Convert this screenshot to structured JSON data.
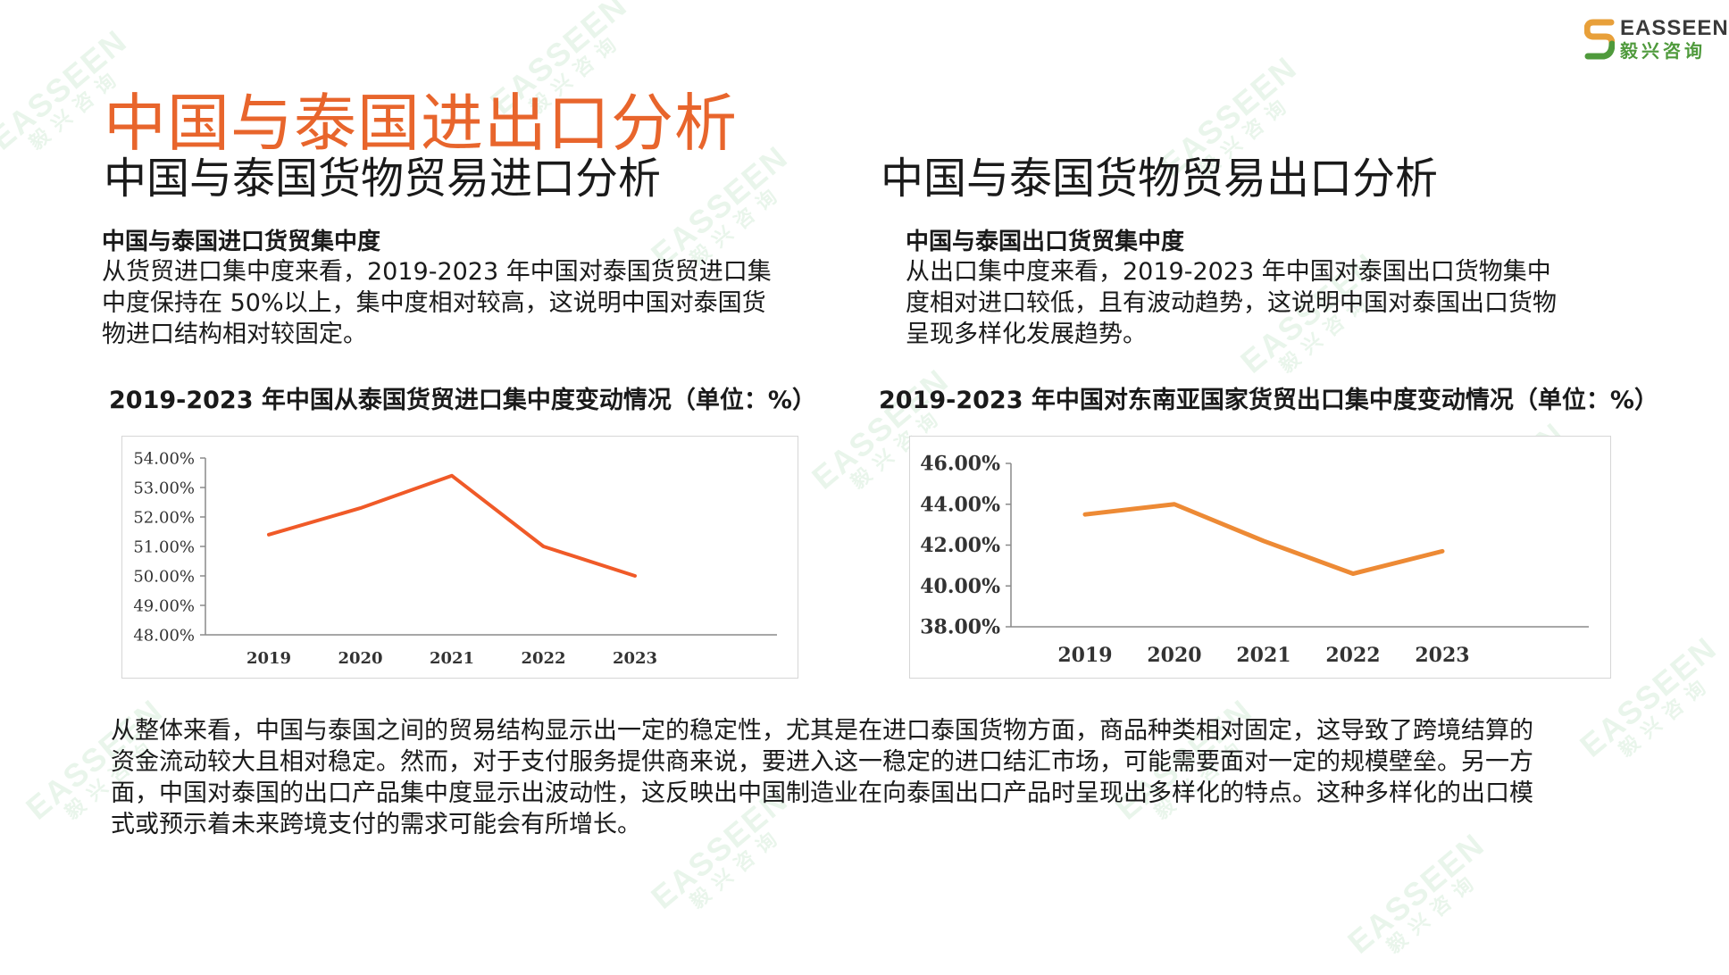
{
  "logo": {
    "en": "EASSEEN",
    "cn": "毅兴咨询"
  },
  "watermark": {
    "en": "EASSEEN",
    "cn": "毅兴咨询"
  },
  "main_title": "中国与泰国进出口分析",
  "import_section": {
    "title": "中国与泰国货物贸易进口分析",
    "heading": "中国与泰国进口货贸集中度",
    "lines": [
      "从货贸进口集中度来看，2019-2023  年中国对泰国货贸进口集",
      "中度保持在  50%以上，集中度相对较高，这说明中国对泰国货",
      "物进口结构相对较固定。"
    ],
    "chart_title": "2019-2023 年中国从泰国货贸进口集中度变动情况（单位：%）"
  },
  "export_section": {
    "title": "中国与泰国货物贸易出口分析",
    "heading": "中国与泰国出口货贸集中度",
    "lines": [
      "从出口集中度来看，2019-2023  年中国对泰国出口货物集中",
      "度相对进口较低，且有波动趋势，这说明中国对泰国出口货物",
      "呈现多样化发展趋势。"
    ],
    "chart_title": "2019-2023 年中国对东南亚国家货贸出口集中度变动情况（单位：%）"
  },
  "summary_lines": [
    "从整体来看，中国与泰国之间的贸易结构显示出一定的稳定性，尤其是在进口泰国货物方面，商品种类相对固定，这导致了跨境结算的",
    "资金流动较大且相对稳定。然而，对于支付服务提供商来说，要进入这一稳定的进口结汇市场，可能需要面对一定的规模壁垒。另一方",
    "面，中国对泰国的出口产品集中度显示出波动性，这反映出中国制造业在向泰国出口产品时呈现出多样化的特点。这种多样化的出口模",
    "式或预示着未来跨境支付的需求可能会有所增长。"
  ],
  "colors": {
    "title_orange": "#e8652c",
    "import_line": "#f05a28",
    "export_line": "#ed8a35",
    "logo_green": "#4f9a3c"
  },
  "chart_data": [
    {
      "type": "line",
      "categories": [
        "2019",
        "2020",
        "2021",
        "2022",
        "2023"
      ],
      "values": [
        51.4,
        52.3,
        53.4,
        51.0,
        50.0
      ],
      "yticks": [
        "54.00%",
        "53.00%",
        "52.00%",
        "51.00%",
        "50.00%",
        "49.00%",
        "48.00%"
      ],
      "ylim": [
        48,
        54
      ],
      "grid": false
    },
    {
      "type": "line",
      "categories": [
        "2019",
        "2020",
        "2021",
        "2022",
        "2023"
      ],
      "values": [
        43.5,
        44.0,
        42.2,
        40.6,
        41.7
      ],
      "yticks": [
        "46.00%",
        "44.00%",
        "42.00%",
        "40.00%",
        "38.00%"
      ],
      "ylim": [
        38,
        46
      ],
      "grid": false
    }
  ]
}
